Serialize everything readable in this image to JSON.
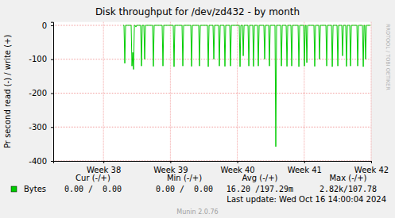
{
  "chart_data": {
    "type": "line",
    "title": "Disk throughput for /dev/zd432 - by month",
    "y_label": "Pr second read (-) / write (+)",
    "xlim": [
      37.25,
      42
    ],
    "xticks": [
      {
        "value": 38,
        "label": "Week 38"
      },
      {
        "value": 39,
        "label": "Week 39"
      },
      {
        "value": 40,
        "label": "Week 40"
      },
      {
        "value": 41,
        "label": "Week 41"
      },
      {
        "value": 42,
        "label": "Week 42"
      }
    ],
    "ylim": [
      -400,
      10
    ],
    "yticks": [
      -400,
      -300,
      -200,
      -100,
      0
    ],
    "grid": true,
    "legend": "bottom",
    "x": [
      38.295,
      38.307,
      38.319,
      38.331,
      38.414,
      38.426,
      38.438,
      38.45,
      38.462,
      38.473,
      38.485,
      38.497,
      38.556,
      38.568,
      38.58,
      38.604,
      38.616,
      38.628,
      38.734,
      38.746,
      38.758,
      38.877,
      38.889,
      38.901,
      39.043,
      39.055,
      39.067,
      39.174,
      39.186,
      39.198,
      39.305,
      39.317,
      39.329,
      39.423,
      39.435,
      39.447,
      39.554,
      39.566,
      39.578,
      39.637,
      39.649,
      39.661,
      39.72,
      39.732,
      39.744,
      39.803,
      39.815,
      39.827,
      39.887,
      39.899,
      39.911,
      40.029,
      40.041,
      40.053,
      40.077,
      40.089,
      40.101,
      40.16,
      40.172,
      40.184,
      40.231,
      40.243,
      40.255,
      40.302,
      40.314,
      40.326,
      40.397,
      40.409,
      40.421,
      40.468,
      40.48,
      40.492,
      40.563,
      40.575,
      40.587,
      40.647,
      40.659,
      40.671,
      40.73,
      40.742,
      40.754,
      40.801,
      40.813,
      40.825,
      40.908,
      40.92,
      40.932,
      40.991,
      41.003,
      41.015,
      41.027,
      41.039,
      41.051,
      41.145,
      41.157,
      41.169,
      41.217,
      41.229,
      41.241,
      41.324,
      41.336,
      41.348,
      41.407,
      41.419,
      41.431,
      41.49,
      41.502,
      41.514,
      41.561,
      41.573,
      41.585,
      41.62,
      41.632,
      41.644,
      41.68,
      41.692,
      41.704,
      41.787,
      41.799,
      41.811,
      41.87,
      41.882,
      41.894,
      41.905,
      41.917,
      41.929,
      41.99
    ],
    "series": [
      {
        "name": "Bytes",
        "color": "#00cc00",
        "values": [
          0,
          0,
          -112,
          0,
          0,
          -120,
          -80,
          -130,
          0,
          0,
          -5,
          0,
          0,
          -120,
          0,
          0,
          -100,
          0,
          0,
          -121,
          0,
          0,
          -120,
          0,
          0,
          -122,
          0,
          0,
          -120,
          0,
          0,
          -121,
          0,
          0,
          -120,
          0,
          0,
          -122,
          0,
          0,
          -100,
          0,
          0,
          -120,
          0,
          0,
          -121,
          0,
          0,
          -120,
          0,
          0,
          -122,
          0,
          0,
          -90,
          0,
          0,
          -120,
          0,
          0,
          -121,
          0,
          0,
          -120,
          0,
          0,
          -100,
          0,
          0,
          -120,
          0,
          0,
          -358,
          0,
          0,
          -120,
          0,
          0,
          -121,
          0,
          0,
          -120,
          0,
          0,
          -122,
          0,
          0,
          -120,
          0,
          0,
          -110,
          0,
          0,
          -121,
          0,
          0,
          -100,
          0,
          0,
          -120,
          0,
          0,
          -122,
          0,
          0,
          -120,
          0,
          0,
          -90,
          0,
          0,
          -121,
          0,
          0,
          -120,
          0,
          0,
          -120,
          0,
          0,
          -122,
          0,
          0,
          -100,
          0,
          0
        ]
      }
    ],
    "stats": {
      "columns": [
        "Cur (-/+)",
        "Min (-/+)",
        "Avg (-/+)",
        "Max (-/+)"
      ],
      "values": [
        "0.00 /  0.00",
        "0.00 /  0.00",
        "16.20 /197.29m",
        "2.82k/107.78"
      ]
    },
    "last_update": "Last update: Wed Oct 16 14:00:04 2024",
    "watermark": "RRDTOOL / TOBI OETIKER",
    "footer": "Munin 2.0.76"
  }
}
